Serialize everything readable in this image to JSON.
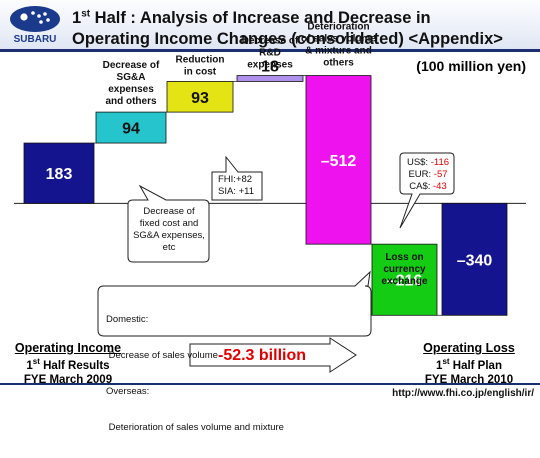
{
  "title": {
    "line1_prefix": "1",
    "line1_sup": "st",
    "line1_rest": " Half : Analysis of Increase and Decrease in",
    "line2": "Operating Income Changes (consolidated) <Appendix>"
  },
  "brand": "SUBARU",
  "unit": "(100 million yen)",
  "chart_data": {
    "type": "bar",
    "subtype": "waterfall",
    "categories": [
      "1st Half Results FYE March 2009",
      "Decrease of SG&A expenses and others",
      "Reduction in cost",
      "Decrease of R&D expenses",
      "Deterioration of sales volume & mixture and others",
      "Loss on currency exchange",
      "1st Half Plan FYE March 2010"
    ],
    "values": [
      183,
      94,
      93,
      18,
      -512,
      -216,
      -340
    ],
    "value_labels": [
      "183",
      "94",
      "93",
      "18",
      "–512",
      "–216",
      "–340"
    ],
    "kinds": [
      "total",
      "delta",
      "delta",
      "delta",
      "delta",
      "delta",
      "total"
    ],
    "colors": [
      "#14148f",
      "#26c4cc",
      "#e4e414",
      "#b090ee",
      "#ee12ee",
      "#14cc14",
      "#14148f"
    ],
    "bar_labels": [
      "",
      "Decrease of\nSG&A\nexpenses\nand others",
      "Reduction\nin cost",
      "Decrease of\nR&D\nexpenses",
      "Deterioration\nof sales volume\n& mixture and\nothers",
      "Loss on\ncurrency\nexchange",
      ""
    ],
    "baseline": 0,
    "ylim": [
      -415,
      420
    ]
  },
  "callouts": {
    "fixed_cost": "Decrease of\nfixed cost and\nSG&A expenses,\netc",
    "subsidiaries": [
      "FHI:+82",
      "SIA: +11"
    ],
    "currency": [
      {
        "label": "US$: ",
        "value": "-116"
      },
      {
        "label": "EUR: ",
        "value": "-57"
      },
      {
        "label": "CA$: ",
        "value": "-43"
      }
    ],
    "volume": [
      "Domestic:",
      " Decrease of sales volume",
      "Overseas:",
      " Deterioration of sales volume and mixture"
    ]
  },
  "arrow_text": "-52.3 billion",
  "left_label": {
    "title": "Operating Income",
    "line1_prefix": "1",
    "line1_sup": "st",
    "line1_rest": " Half Results",
    "line2": "FYE March 2009"
  },
  "right_label": {
    "title": "Operating Loss",
    "line1_prefix": "1",
    "line1_sup": "st",
    "line1_rest": " Half Plan",
    "line2": "FYE March 2010"
  },
  "url": "http://www.fhi.co.jp/english/ir/",
  "colors": {
    "navy": "#1a2f6e",
    "red": "#e00000"
  }
}
